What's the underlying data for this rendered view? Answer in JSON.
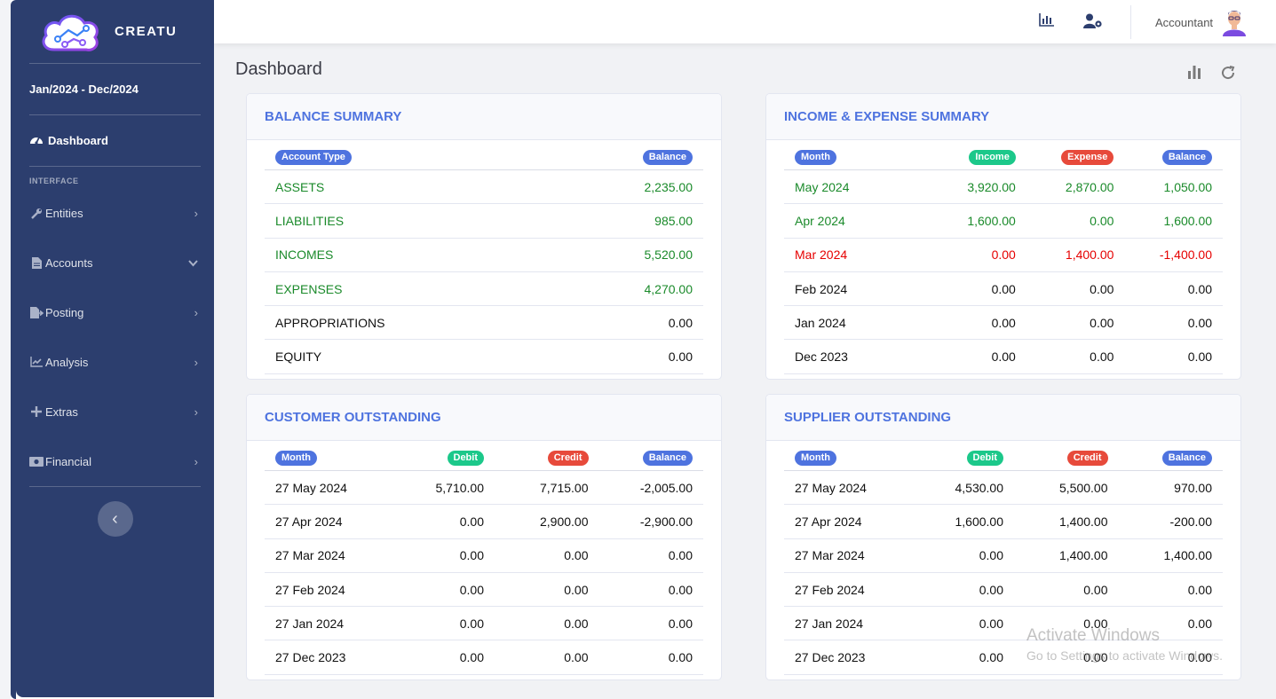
{
  "sidebar": {
    "brand": "CREATU",
    "period": "Jan/2024 - Dec/2024",
    "dashboard_label": "Dashboard",
    "section_heading": "INTERFACE",
    "items": [
      {
        "label": "Entities",
        "icon": "wrench-icon",
        "chevron": "›"
      },
      {
        "label": "Accounts",
        "icon": "file-icon",
        "chevron": "⌄"
      },
      {
        "label": "Posting",
        "icon": "file-export-icon",
        "chevron": "›"
      },
      {
        "label": "Analysis",
        "icon": "line-chart-icon",
        "chevron": "›"
      },
      {
        "label": "Extras",
        "icon": "plus-icon",
        "chevron": "›"
      },
      {
        "label": "Financial",
        "icon": "money-icon",
        "chevron": "›"
      }
    ],
    "toggle_glyph": "‹"
  },
  "topbar": {
    "user_name": "Accountant",
    "icons": [
      "bar-chart-icon",
      "user-settings-icon"
    ]
  },
  "page": {
    "title": "Dashboard",
    "header_icons": [
      "bar-chart-icon",
      "refresh-icon"
    ]
  },
  "balance_summary": {
    "title": "BALANCE SUMMARY",
    "headers": [
      "Account Type",
      "Balance"
    ],
    "rows": [
      {
        "cells": [
          "ASSETS",
          "2,235.00"
        ],
        "color": "green"
      },
      {
        "cells": [
          "LIABILITIES",
          "985.00"
        ],
        "color": "green"
      },
      {
        "cells": [
          "INCOMES",
          "5,520.00"
        ],
        "color": "green"
      },
      {
        "cells": [
          "EXPENSES",
          "4,270.00"
        ],
        "color": "green"
      },
      {
        "cells": [
          "APPROPRIATIONS",
          "0.00"
        ],
        "color": "dark"
      },
      {
        "cells": [
          "EQUITY",
          "0.00"
        ],
        "color": "dark"
      }
    ]
  },
  "income_expense_summary": {
    "title": "INCOME & EXPENSE SUMMARY",
    "headers": [
      "Month",
      "Income",
      "Expense",
      "Balance"
    ],
    "rows": [
      {
        "cells": [
          "May 2024",
          "3,920.00",
          "2,870.00",
          "1,050.00"
        ],
        "color": "green"
      },
      {
        "cells": [
          "Apr 2024",
          "1,600.00",
          "0.00",
          "1,600.00"
        ],
        "color": "green"
      },
      {
        "cells": [
          "Mar 2024",
          "0.00",
          "1,400.00",
          "-1,400.00"
        ],
        "color": "red"
      },
      {
        "cells": [
          "Feb 2024",
          "0.00",
          "0.00",
          "0.00"
        ],
        "color": "dark"
      },
      {
        "cells": [
          "Jan 2024",
          "0.00",
          "0.00",
          "0.00"
        ],
        "color": "dark"
      },
      {
        "cells": [
          "Dec 2023",
          "0.00",
          "0.00",
          "0.00"
        ],
        "color": "dark"
      }
    ]
  },
  "customer_outstanding": {
    "title": "CUSTOMER OUTSTANDING",
    "headers": [
      "Month",
      "Debit",
      "Credit",
      "Balance"
    ],
    "rows": [
      {
        "cells": [
          "27 May 2024",
          "5,710.00",
          "7,715.00",
          "-2,005.00"
        ],
        "color": "dark"
      },
      {
        "cells": [
          "27 Apr 2024",
          "0.00",
          "2,900.00",
          "-2,900.00"
        ],
        "color": "dark"
      },
      {
        "cells": [
          "27 Mar 2024",
          "0.00",
          "0.00",
          "0.00"
        ],
        "color": "dark"
      },
      {
        "cells": [
          "27 Feb 2024",
          "0.00",
          "0.00",
          "0.00"
        ],
        "color": "dark"
      },
      {
        "cells": [
          "27 Jan 2024",
          "0.00",
          "0.00",
          "0.00"
        ],
        "color": "dark"
      },
      {
        "cells": [
          "27 Dec 2023",
          "0.00",
          "0.00",
          "0.00"
        ],
        "color": "dark"
      }
    ]
  },
  "supplier_outstanding": {
    "title": "SUPPLIER OUTSTANDING",
    "headers": [
      "Month",
      "Debit",
      "Credit",
      "Balance"
    ],
    "rows": [
      {
        "cells": [
          "27 May 2024",
          "4,530.00",
          "5,500.00",
          "970.00"
        ],
        "color": "dark"
      },
      {
        "cells": [
          "27 Apr 2024",
          "1,600.00",
          "1,400.00",
          "-200.00"
        ],
        "color": "dark"
      },
      {
        "cells": [
          "27 Mar 2024",
          "0.00",
          "1,400.00",
          "1,400.00"
        ],
        "color": "dark"
      },
      {
        "cells": [
          "27 Feb 2024",
          "0.00",
          "0.00",
          "0.00"
        ],
        "color": "dark"
      },
      {
        "cells": [
          "27 Jan 2024",
          "0.00",
          "0.00",
          "0.00"
        ],
        "color": "dark"
      },
      {
        "cells": [
          "27 Dec 2023",
          "0.00",
          "0.00",
          "0.00"
        ],
        "color": "dark"
      }
    ]
  },
  "badge_colors": {
    "blue": "#4e73df",
    "green": "#1cc88a",
    "red": "#e74a3b"
  },
  "watermark": {
    "line1": "Activate Windows",
    "line2": "Go to Settings to activate Windows."
  }
}
